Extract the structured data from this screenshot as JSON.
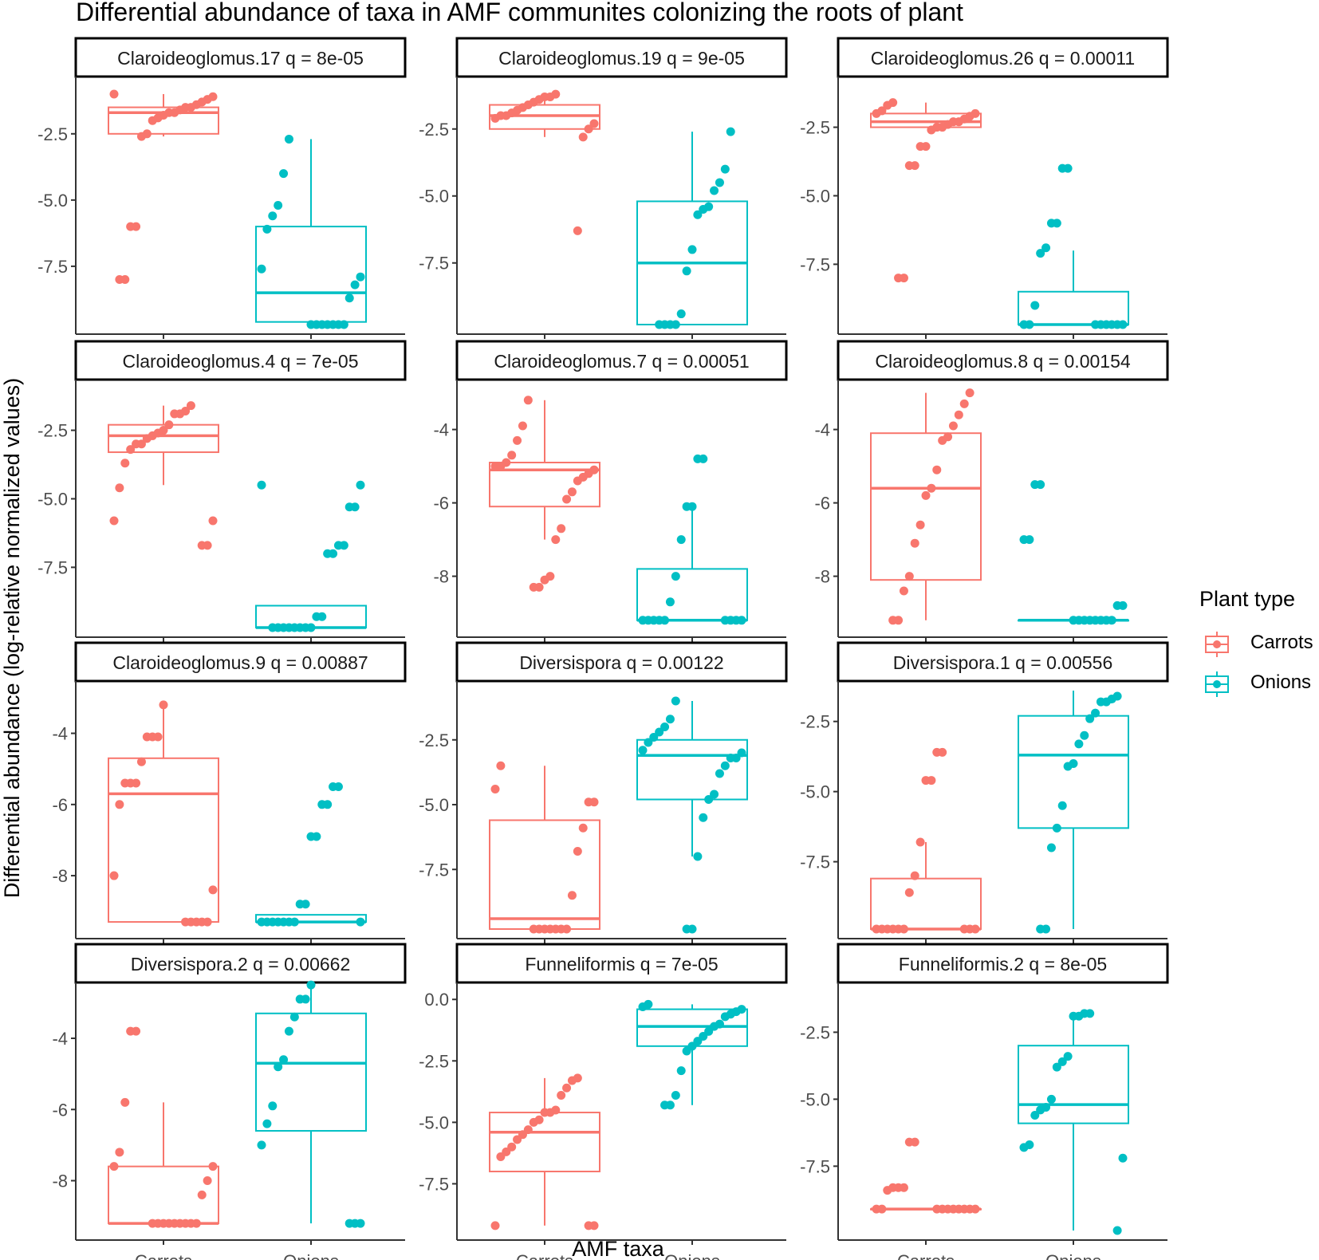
{
  "chart_data": {
    "type": "boxplot",
    "title": "Differential abundance of taxa in AMF communites colonizing the roots of plant",
    "xlabel": "AMF taxa",
    "ylabel": "Differential abundance (log-relative normalized values)",
    "legend": {
      "title": "Plant type",
      "position": "right",
      "entries": [
        {
          "label": "Carrots",
          "color": "#F8766D"
        },
        {
          "label": "Onions",
          "color": "#00BFC4"
        }
      ]
    },
    "categories": [
      "Carrots",
      "Onions"
    ],
    "facets": [
      {
        "label": "Claroideoglomus.17 q = 8e-05",
        "ylim": [
          -9.7,
          -0.7
        ],
        "yticks": [
          -2.5,
          -5.0,
          -7.5
        ],
        "ytick_labels": [
          "-2.5",
          "-5.0",
          "-7.5"
        ],
        "boxes": [
          {
            "group": "Carrots",
            "min": -2.6,
            "q1": -2.5,
            "median": -1.7,
            "q3": -1.5,
            "max": -1.0
          },
          {
            "group": "Onions",
            "min": -9.7,
            "q1": -9.6,
            "median": -8.5,
            "q3": -6.0,
            "max": -2.7
          }
        ],
        "points": {
          "Carrots": [
            -1.0,
            -1.1,
            -1.2,
            -1.3,
            -1.4,
            -1.5,
            -1.5,
            -1.6,
            -1.7,
            -1.7,
            -1.8,
            -1.9,
            -2.0,
            -2.5,
            -2.6,
            -6.0,
            -6.0,
            -8.0,
            -8.0
          ],
          "Onions": [
            -2.7,
            -4.0,
            -5.2,
            -5.6,
            -6.1,
            -7.6,
            -7.9,
            -8.2,
            -8.7,
            -9.7,
            -9.7,
            -9.7,
            -9.7,
            -9.7,
            -9.7,
            -9.7
          ]
        }
      },
      {
        "label": "Claroideoglomus.19 q = 9e-05",
        "ylim": [
          -9.8,
          -0.9
        ],
        "yticks": [
          -2.5,
          -5.0,
          -7.5
        ],
        "ytick_labels": [
          "-2.5",
          "-5.0",
          "-7.5"
        ],
        "boxes": [
          {
            "group": "Carrots",
            "min": -2.8,
            "q1": -2.5,
            "median": -2.0,
            "q3": -1.6,
            "max": -1.2
          },
          {
            "group": "Onions",
            "min": -9.8,
            "q1": -9.8,
            "median": -7.5,
            "q3": -5.2,
            "max": -2.6
          }
        ],
        "points": {
          "Carrots": [
            -1.2,
            -1.3,
            -1.3,
            -1.4,
            -1.5,
            -1.6,
            -1.7,
            -1.8,
            -1.9,
            -2.0,
            -2.0,
            -2.1,
            -2.3,
            -2.5,
            -2.8,
            -6.3
          ],
          "Onions": [
            -2.6,
            -4.0,
            -4.5,
            -4.8,
            -5.4,
            -5.5,
            -5.7,
            -7.0,
            -7.8,
            -9.4,
            -9.8,
            -9.8,
            -9.8,
            -9.8
          ]
        }
      },
      {
        "label": "Claroideoglomus.26 q = 0.00011",
        "ylim": [
          -9.7,
          -1.0
        ],
        "yticks": [
          -2.5,
          -5.0,
          -7.5
        ],
        "ytick_labels": [
          "-2.5",
          "-5.0",
          "-7.5"
        ],
        "boxes": [
          {
            "group": "Carrots",
            "min": -2.5,
            "q1": -2.5,
            "median": -2.3,
            "q3": -2.0,
            "max": -1.6
          },
          {
            "group": "Onions",
            "min": -9.7,
            "q1": -9.7,
            "median": -9.7,
            "q3": -8.5,
            "max": -7.0
          }
        ],
        "points": {
          "Carrots": [
            -1.6,
            -1.7,
            -1.9,
            -2.0,
            -2.0,
            -2.1,
            -2.2,
            -2.3,
            -2.3,
            -2.4,
            -2.5,
            -2.5,
            -2.6,
            -3.2,
            -3.2,
            -3.9,
            -3.9,
            -8.0,
            -8.0
          ],
          "Onions": [
            -4.0,
            -4.0,
            -6.0,
            -6.0,
            -6.9,
            -7.1,
            -9.0,
            -9.7,
            -9.7,
            -9.7,
            -9.7,
            -9.7,
            -9.7,
            -9.7,
            -9.7
          ]
        }
      },
      {
        "label": "Claroideoglomus.4 q = 7e-05",
        "ylim": [
          -9.7,
          -1.0
        ],
        "yticks": [
          -2.5,
          -5.0,
          -7.5
        ],
        "ytick_labels": [
          "-2.5",
          "-5.0",
          "-7.5"
        ],
        "boxes": [
          {
            "group": "Carrots",
            "min": -4.5,
            "q1": -3.3,
            "median": -2.7,
            "q3": -2.3,
            "max": -1.6
          },
          {
            "group": "Onions",
            "min": -9.7,
            "q1": -9.7,
            "median": -9.7,
            "q3": -8.9,
            "max": -8.9
          }
        ],
        "points": {
          "Carrots": [
            -1.6,
            -1.8,
            -1.9,
            -1.9,
            -2.3,
            -2.5,
            -2.6,
            -2.7,
            -2.8,
            -3.0,
            -3.0,
            -3.2,
            -3.7,
            -4.6,
            -5.8,
            -5.8,
            -6.7,
            -6.7
          ],
          "Onions": [
            -4.5,
            -4.5,
            -5.3,
            -5.3,
            -6.7,
            -6.7,
            -7.0,
            -7.0,
            -9.3,
            -9.3,
            -9.7,
            -9.7,
            -9.7,
            -9.7,
            -9.7,
            -9.7,
            -9.7,
            -9.7
          ]
        }
      },
      {
        "label": "Claroideoglomus.7 q = 0.00051",
        "ylim": [
          -9.4,
          -2.9
        ],
        "yticks": [
          -4,
          -6,
          -8
        ],
        "ytick_labels": [
          "-4",
          "-6",
          "-8"
        ],
        "boxes": [
          {
            "group": "Carrots",
            "min": -7.0,
            "q1": -6.1,
            "median": -5.1,
            "q3": -4.9,
            "max": -3.2
          },
          {
            "group": "Onions",
            "min": -9.2,
            "q1": -9.2,
            "median": -9.2,
            "q3": -7.8,
            "max": -6.0
          }
        ],
        "points": {
          "Carrots": [
            -3.2,
            -3.9,
            -4.3,
            -4.7,
            -4.9,
            -5.0,
            -5.0,
            -5.1,
            -5.2,
            -5.3,
            -5.4,
            -5.7,
            -5.9,
            -6.7,
            -7.0,
            -8.0,
            -8.1,
            -8.3,
            -8.3
          ],
          "Onions": [
            -4.8,
            -4.8,
            -6.1,
            -6.1,
            -7.0,
            -8.0,
            -8.7,
            -9.2,
            -9.2,
            -9.2,
            -9.2,
            -9.2,
            -9.2,
            -9.2,
            -9.2,
            -9.2
          ]
        }
      },
      {
        "label": "Claroideoglomus.8 q = 0.00154",
        "ylim": [
          -9.4,
          -2.9
        ],
        "yticks": [
          -4,
          -6,
          -8
        ],
        "ytick_labels": [
          "-4",
          "-6",
          "-8"
        ],
        "boxes": [
          {
            "group": "Carrots",
            "min": -9.2,
            "q1": -8.1,
            "median": -5.6,
            "q3": -4.1,
            "max": -3.0
          },
          {
            "group": "Onions",
            "min": -9.2,
            "q1": -9.2,
            "median": -9.2,
            "q3": -9.2,
            "max": -9.2
          }
        ],
        "points": {
          "Carrots": [
            -3.0,
            -3.3,
            -3.6,
            -3.9,
            -4.2,
            -4.3,
            -5.1,
            -5.6,
            -5.8,
            -6.6,
            -7.1,
            -8.0,
            -8.4,
            -9.2,
            -9.2
          ],
          "Onions": [
            -5.5,
            -5.5,
            -7.0,
            -7.0,
            -8.8,
            -8.8,
            -9.2,
            -9.2,
            -9.2,
            -9.2,
            -9.2,
            -9.2,
            -9.2,
            -9.2
          ]
        }
      },
      {
        "label": "Claroideoglomus.9 q = 0.00887",
        "ylim": [
          -9.5,
          -2.8
        ],
        "yticks": [
          -4,
          -6,
          -8
        ],
        "ytick_labels": [
          "-4",
          "-6",
          "-8"
        ],
        "boxes": [
          {
            "group": "Carrots",
            "min": -9.3,
            "q1": -9.3,
            "median": -5.7,
            "q3": -4.7,
            "max": -3.2
          },
          {
            "group": "Onions",
            "min": -9.3,
            "q1": -9.3,
            "median": -9.3,
            "q3": -9.1,
            "max": -9.1
          }
        ],
        "points": {
          "Carrots": [
            -3.2,
            -4.1,
            -4.1,
            -4.1,
            -4.8,
            -5.4,
            -5.4,
            -5.4,
            -6.0,
            -8.0,
            -8.4,
            -9.3,
            -9.3,
            -9.3,
            -9.3,
            -9.3
          ],
          "Onions": [
            -5.5,
            -5.5,
            -6.0,
            -6.0,
            -6.9,
            -6.9,
            -8.8,
            -8.8,
            -9.3,
            -9.3,
            -9.3,
            -9.3,
            -9.3,
            -9.3,
            -9.3,
            -9.3
          ]
        }
      },
      {
        "label": "Diversispora q = 0.00122",
        "ylim": [
          -9.8,
          -0.6
        ],
        "yticks": [
          -2.5,
          -5.0,
          -7.5
        ],
        "ytick_labels": [
          "-2.5",
          "-5.0",
          "-7.5"
        ],
        "boxes": [
          {
            "group": "Carrots",
            "min": -9.8,
            "q1": -9.8,
            "median": -9.4,
            "q3": -5.6,
            "max": -3.5
          },
          {
            "group": "Onions",
            "min": -7.0,
            "q1": -4.8,
            "median": -3.1,
            "q3": -2.5,
            "max": -1.0
          }
        ],
        "points": {
          "Carrots": [
            -3.5,
            -4.4,
            -4.9,
            -4.9,
            -5.9,
            -6.8,
            -8.5,
            -9.8,
            -9.8,
            -9.8,
            -9.8,
            -9.8,
            -9.8,
            -9.8
          ],
          "Onions": [
            -1.0,
            -1.7,
            -2.0,
            -2.2,
            -2.4,
            -2.6,
            -2.9,
            -3.0,
            -3.2,
            -3.2,
            -3.5,
            -3.8,
            -4.6,
            -4.8,
            -5.5,
            -7.0,
            -9.8,
            -9.8
          ]
        }
      },
      {
        "label": "Diversispora.1 q = 0.00556",
        "ylim": [
          -9.9,
          -1.4
        ],
        "yticks": [
          -2.5,
          -5.0,
          -7.5
        ],
        "ytick_labels": [
          "-2.5",
          "-5.0",
          "-7.5"
        ],
        "boxes": [
          {
            "group": "Carrots",
            "min": -9.9,
            "q1": -9.9,
            "median": -9.9,
            "q3": -8.1,
            "max": -6.8
          },
          {
            "group": "Onions",
            "min": -9.9,
            "q1": -6.3,
            "median": -3.7,
            "q3": -2.3,
            "max": -1.4
          }
        ],
        "points": {
          "Carrots": [
            -3.6,
            -3.6,
            -4.6,
            -4.6,
            -6.8,
            -8.0,
            -8.6,
            -9.9,
            -9.9,
            -9.9,
            -9.9,
            -9.9,
            -9.9,
            -9.9,
            -9.9,
            -9.9
          ],
          "Onions": [
            -1.6,
            -1.7,
            -1.8,
            -1.8,
            -2.2,
            -2.4,
            -3.0,
            -3.3,
            -4.0,
            -4.1,
            -5.5,
            -6.3,
            -7.0,
            -9.9,
            -9.9
          ]
        }
      },
      {
        "label": "Diversispora.2 q = 0.00662",
        "ylim": [
          -9.4,
          -2.7
        ],
        "yticks": [
          -4,
          -6,
          -8
        ],
        "ytick_labels": [
          "-4",
          "-6",
          "-8"
        ],
        "boxes": [
          {
            "group": "Carrots",
            "min": -9.2,
            "q1": -9.2,
            "median": -9.2,
            "q3": -7.6,
            "max": -5.8
          },
          {
            "group": "Onions",
            "min": -9.2,
            "q1": -6.6,
            "median": -4.7,
            "q3": -3.3,
            "max": -2.5
          }
        ],
        "points": {
          "Carrots": [
            -3.8,
            -3.8,
            -5.8,
            -7.2,
            -7.6,
            -7.6,
            -8.0,
            -8.4,
            -9.2,
            -9.2,
            -9.2,
            -9.2,
            -9.2,
            -9.2,
            -9.2,
            -9.2,
            -9.2
          ],
          "Onions": [
            -2.5,
            -2.9,
            -2.9,
            -3.4,
            -3.8,
            -4.6,
            -4.8,
            -5.9,
            -6.4,
            -7.0,
            -9.2,
            -9.2,
            -9.2
          ]
        }
      },
      {
        "label": "Funneliformis q = 7e-05",
        "ylim": [
          -9.4,
          0.3
        ],
        "yticks": [
          0.0,
          -2.5,
          -5.0,
          -7.5
        ],
        "ytick_labels": [
          "0.0",
          "-2.5",
          "-5.0",
          "-7.5"
        ],
        "boxes": [
          {
            "group": "Carrots",
            "min": -9.2,
            "q1": -7.0,
            "median": -5.4,
            "q3": -4.6,
            "max": -3.2
          },
          {
            "group": "Onions",
            "min": -4.3,
            "q1": -1.9,
            "median": -1.1,
            "q3": -0.4,
            "max": -0.2
          }
        ],
        "points": {
          "Carrots": [
            -3.2,
            -3.3,
            -3.6,
            -3.9,
            -4.5,
            -4.6,
            -4.6,
            -4.9,
            -5.0,
            -5.3,
            -5.5,
            -5.7,
            -6.0,
            -6.2,
            -6.4,
            -9.2,
            -9.2,
            -9.2
          ],
          "Onions": [
            -0.2,
            -0.3,
            -0.4,
            -0.5,
            -0.6,
            -0.7,
            -1.0,
            -1.1,
            -1.3,
            -1.5,
            -1.7,
            -1.9,
            -2.1,
            -2.9,
            -3.9,
            -4.3,
            -4.3
          ]
        }
      },
      {
        "label": "Funneliformis.2 q = 8e-05",
        "ylim": [
          -9.9,
          -1.0
        ],
        "yticks": [
          -2.5,
          -5.0,
          -7.5
        ],
        "ytick_labels": [
          "-2.5",
          "-5.0",
          "-7.5"
        ],
        "boxes": [
          {
            "group": "Carrots",
            "min": -9.1,
            "q1": -9.1,
            "median": -9.1,
            "q3": -9.1,
            "max": -9.1
          },
          {
            "group": "Onions",
            "min": -9.9,
            "q1": -5.9,
            "median": -5.2,
            "q3": -3.0,
            "max": -1.8
          }
        ],
        "points": {
          "Carrots": [
            -6.6,
            -6.6,
            -8.3,
            -8.3,
            -8.3,
            -8.4,
            -9.1,
            -9.1,
            -9.1,
            -9.1,
            -9.1,
            -9.1,
            -9.1,
            -9.1,
            -9.1,
            -9.1
          ],
          "Onions": [
            -1.8,
            -1.8,
            -1.9,
            -1.9,
            -3.4,
            -3.6,
            -3.8,
            -5.0,
            -5.3,
            -5.4,
            -5.6,
            -6.7,
            -6.8,
            -7.2,
            -9.9
          ]
        }
      }
    ]
  }
}
